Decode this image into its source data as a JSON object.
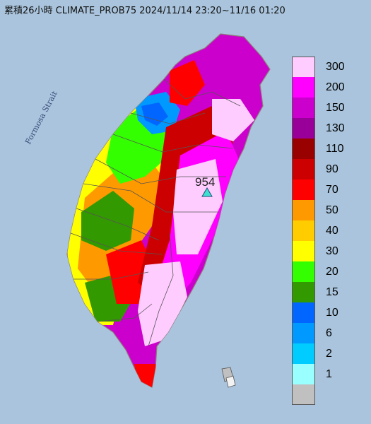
{
  "title": "累積26小時 CLIMATE_PROB75 2024/11/14 23:20~11/16 01:20",
  "strait_label": "Formosa Strait",
  "station": {
    "value": "954",
    "marker": "triangle-marker-icon",
    "color": "#40e0d0"
  },
  "colors": {
    "sea": "#a9c4dc",
    "land_outline": "#8c7a7a",
    "county_lines": "#555555"
  },
  "legend": [
    {
      "label": "300",
      "color": "#ffccff"
    },
    {
      "label": "200",
      "color": "#ff00ff"
    },
    {
      "label": "150",
      "color": "#cc00cc"
    },
    {
      "label": "130",
      "color": "#990099"
    },
    {
      "label": "110",
      "color": "#990000"
    },
    {
      "label": "90",
      "color": "#cc0000"
    },
    {
      "label": "70",
      "color": "#ff0000"
    },
    {
      "label": "50",
      "color": "#ff9900"
    },
    {
      "label": "40",
      "color": "#ffcc00"
    },
    {
      "label": "30",
      "color": "#ffff00"
    },
    {
      "label": "20",
      "color": "#33ff00"
    },
    {
      "label": "15",
      "color": "#339900"
    },
    {
      "label": "10",
      "color": "#0066ff"
    },
    {
      "label": "6",
      "color": "#0099ff"
    },
    {
      "label": "2",
      "color": "#00ccff"
    },
    {
      "label": "1",
      "color": "#99ffff"
    },
    {
      "label": "",
      "color": "#c0c0c0"
    }
  ]
}
